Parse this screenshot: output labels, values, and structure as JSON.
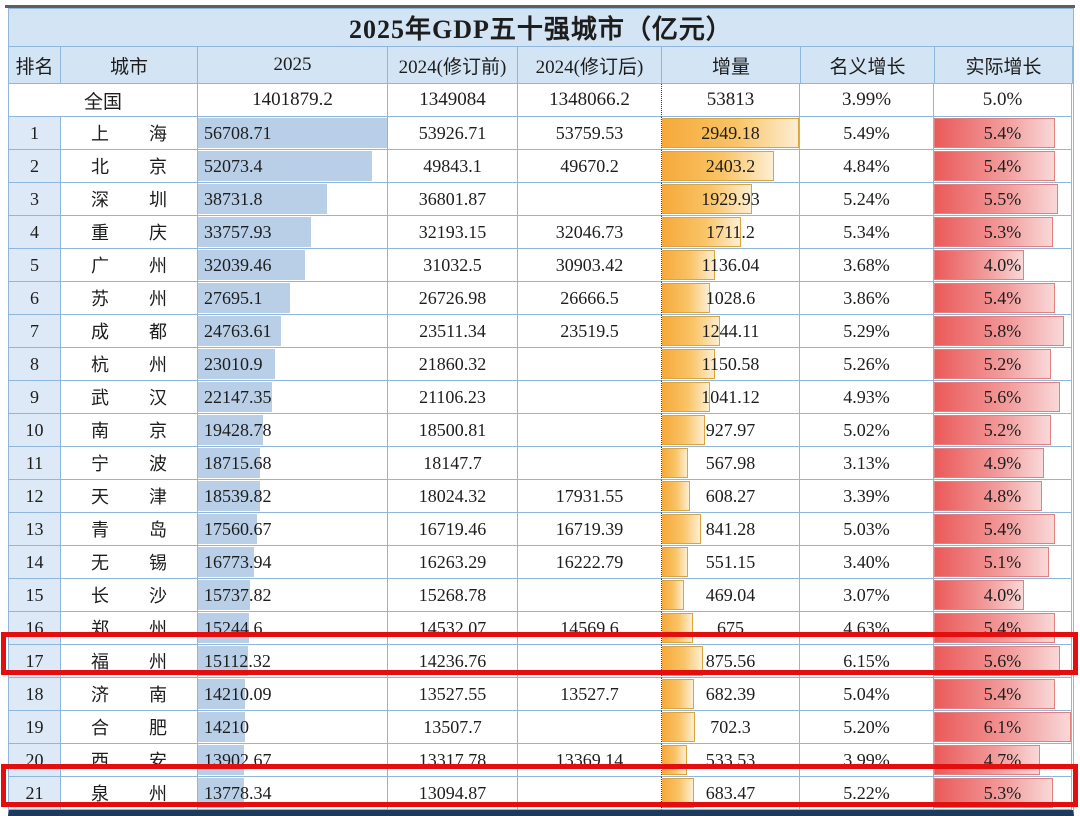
{
  "title": "2025年GDP五十强城市（亿元）",
  "chart_data": {
    "type": "table",
    "title": "2025年GDP五十强城市（亿元）",
    "columns": [
      "排名",
      "城市",
      "2025",
      "2024(修订前)",
      "2024(修订后)",
      "增量",
      "名义增长",
      "实际增长"
    ],
    "national": {
      "label": "全国",
      "y2025": "1401879.2",
      "pre": "1349084",
      "rev": "1348066.2",
      "delta": "53813",
      "nominal": "3.99%",
      "real": "5.0%"
    },
    "rows": [
      {
        "rank": "1",
        "city": "上海",
        "y2025": "56708.71",
        "pre": "53926.71",
        "rev": "53759.53",
        "delta": "2949.18",
        "nominal": "5.49%",
        "real": "5.4%",
        "highlight": false
      },
      {
        "rank": "2",
        "city": "北京",
        "y2025": "52073.4",
        "pre": "49843.1",
        "rev": "49670.2",
        "delta": "2403.2",
        "nominal": "4.84%",
        "real": "5.4%",
        "highlight": false
      },
      {
        "rank": "3",
        "city": "深圳",
        "y2025": "38731.8",
        "pre": "36801.87",
        "rev": "",
        "delta": "1929.93",
        "nominal": "5.24%",
        "real": "5.5%",
        "highlight": false
      },
      {
        "rank": "4",
        "city": "重庆",
        "y2025": "33757.93",
        "pre": "32193.15",
        "rev": "32046.73",
        "delta": "1711.2",
        "nominal": "5.34%",
        "real": "5.3%",
        "highlight": false
      },
      {
        "rank": "5",
        "city": "广州",
        "y2025": "32039.46",
        "pre": "31032.5",
        "rev": "30903.42",
        "delta": "1136.04",
        "nominal": "3.68%",
        "real": "4.0%",
        "highlight": false
      },
      {
        "rank": "6",
        "city": "苏州",
        "y2025": "27695.1",
        "pre": "26726.98",
        "rev": "26666.5",
        "delta": "1028.6",
        "nominal": "3.86%",
        "real": "5.4%",
        "highlight": false
      },
      {
        "rank": "7",
        "city": "成都",
        "y2025": "24763.61",
        "pre": "23511.34",
        "rev": "23519.5",
        "delta": "1244.11",
        "nominal": "5.29%",
        "real": "5.8%",
        "highlight": false
      },
      {
        "rank": "8",
        "city": "杭州",
        "y2025": "23010.9",
        "pre": "21860.32",
        "rev": "",
        "delta": "1150.58",
        "nominal": "5.26%",
        "real": "5.2%",
        "highlight": false
      },
      {
        "rank": "9",
        "city": "武汉",
        "y2025": "22147.35",
        "pre": "21106.23",
        "rev": "",
        "delta": "1041.12",
        "nominal": "4.93%",
        "real": "5.6%",
        "highlight": false
      },
      {
        "rank": "10",
        "city": "南京",
        "y2025": "19428.78",
        "pre": "18500.81",
        "rev": "",
        "delta": "927.97",
        "nominal": "5.02%",
        "real": "5.2%",
        "highlight": false
      },
      {
        "rank": "11",
        "city": "宁波",
        "y2025": "18715.68",
        "pre": "18147.7",
        "rev": "",
        "delta": "567.98",
        "nominal": "3.13%",
        "real": "4.9%",
        "highlight": false
      },
      {
        "rank": "12",
        "city": "天津",
        "y2025": "18539.82",
        "pre": "18024.32",
        "rev": "17931.55",
        "delta": "608.27",
        "nominal": "3.39%",
        "real": "4.8%",
        "highlight": false
      },
      {
        "rank": "13",
        "city": "青岛",
        "y2025": "17560.67",
        "pre": "16719.46",
        "rev": "16719.39",
        "delta": "841.28",
        "nominal": "5.03%",
        "real": "5.4%",
        "highlight": false
      },
      {
        "rank": "14",
        "city": "无锡",
        "y2025": "16773.94",
        "pre": "16263.29",
        "rev": "16222.79",
        "delta": "551.15",
        "nominal": "3.40%",
        "real": "5.1%",
        "highlight": false
      },
      {
        "rank": "15",
        "city": "长沙",
        "y2025": "15737.82",
        "pre": "15268.78",
        "rev": "",
        "delta": "469.04",
        "nominal": "3.07%",
        "real": "4.0%",
        "highlight": false
      },
      {
        "rank": "16",
        "city": "郑州",
        "y2025": "15244.6",
        "pre": "14532.07",
        "rev": "14569.6",
        "delta": "675",
        "nominal": "4.63%",
        "real": "5.4%",
        "highlight": false
      },
      {
        "rank": "17",
        "city": "福州",
        "y2025": "15112.32",
        "pre": "14236.76",
        "rev": "",
        "delta": "875.56",
        "nominal": "6.15%",
        "real": "5.6%",
        "highlight": true
      },
      {
        "rank": "18",
        "city": "济南",
        "y2025": "14210.09",
        "pre": "13527.55",
        "rev": "13527.7",
        "delta": "682.39",
        "nominal": "5.04%",
        "real": "5.4%",
        "highlight": false
      },
      {
        "rank": "19",
        "city": "合肥",
        "y2025": "14210",
        "pre": "13507.7",
        "rev": "",
        "delta": "702.3",
        "nominal": "5.20%",
        "real": "6.1%",
        "highlight": false
      },
      {
        "rank": "20",
        "city": "西安",
        "y2025": "13902.67",
        "pre": "13317.78",
        "rev": "13369.14",
        "delta": "533.53",
        "nominal": "3.99%",
        "real": "4.7%",
        "highlight": false
      },
      {
        "rank": "21",
        "city": "泉州",
        "y2025": "13778.34",
        "pre": "13094.87",
        "rev": "",
        "delta": "683.47",
        "nominal": "5.22%",
        "real": "5.3%",
        "highlight": true
      }
    ],
    "bar_scales": {
      "y2025_max": 56708.71,
      "delta_max": 2949.18,
      "real_max": 6.1
    },
    "highlighted_ranks": [
      17,
      21
    ]
  },
  "colors": {
    "header_bg": "#d3e4f4",
    "national_bg": "#e3efd9",
    "rank_bg": "#dde9f6",
    "grid": "#8fb6dc",
    "bottom_border": "#1b3a5c",
    "highlight_border": "#e50e0e",
    "bar_blue": "#b9cfe7",
    "bar_orange_start": "#f6a93a",
    "bar_orange_end": "#fdeed2",
    "bar_red_start": "#eb5a5a",
    "bar_red_end": "#f9d8d8"
  }
}
